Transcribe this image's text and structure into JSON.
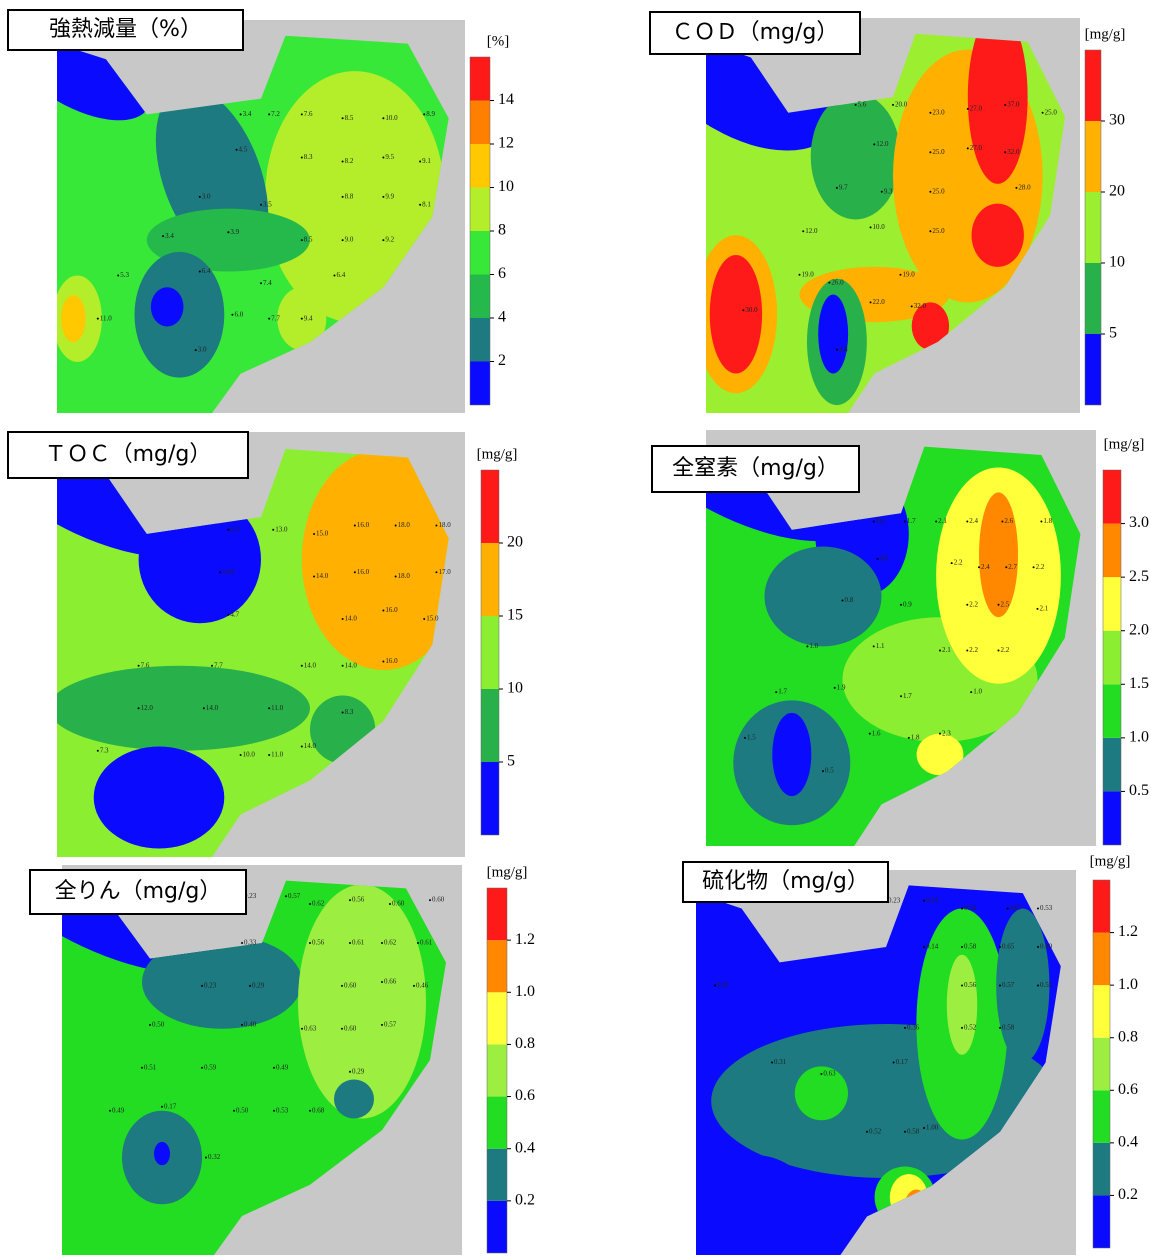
{
  "panels": [
    {
      "title": "強熱減量（%）",
      "unit": "[%]",
      "ticks": [
        2,
        4,
        6,
        8,
        10,
        12,
        14
      ],
      "colors": [
        "#0a0aff",
        "#1c7a80",
        "#25b84a",
        "#38e838",
        "#b4ee2a",
        "#ffc800",
        "#ff8000",
        "#ff1a1a"
      ],
      "points": [
        "3.4",
        "7.2",
        "7.6",
        "8.5",
        "10.0",
        "8.9",
        "4.5",
        "8.3",
        "8.2",
        "9.5",
        "9.1",
        "3.0",
        "3.5",
        "8.8",
        "9.9",
        "8.1",
        "3.4",
        "3.9",
        "8.5",
        "9.0",
        "9.2",
        "5.3",
        "6.4",
        "7.4",
        "6.4",
        "11.0",
        "6.0",
        "7.7",
        "9.4",
        "3.0"
      ]
    },
    {
      "title": "ＣＯＤ（mg/g）",
      "unit": "[mg/g]",
      "ticks": [
        5,
        10,
        20,
        30
      ],
      "colors": [
        "#0a0aff",
        "#28b04a",
        "#9cee30",
        "#ffb000",
        "#ff1a1a"
      ],
      "points": [
        "5.6",
        "20.0",
        "23.0",
        "27.0",
        "37.0",
        "25.0",
        "12.0",
        "25.0",
        "27.0",
        "32.0",
        "9.7",
        "9.3",
        "25.0",
        "28.0",
        "12.0",
        "10.0",
        "25.0",
        "19.0",
        "26.0",
        "19.0",
        "30.0",
        "22.0",
        "32.0",
        "4.8"
      ]
    },
    {
      "title": "ＴＯＣ（mg/g）",
      "unit": "[mg/g]",
      "ticks": [
        5,
        10,
        15,
        20
      ],
      "colors": [
        "#0a0aff",
        "#28b04a",
        "#8cee30",
        "#ffb000",
        "#ff1a1a"
      ],
      "points": [
        "6.3",
        "13.0",
        "15.0",
        "16.0",
        "18.0",
        "18.0",
        "14.9",
        "14.0",
        "16.0",
        "18.0",
        "17.0",
        "4.7",
        "14.0",
        "16.0",
        "15.0",
        "7.6",
        "7.7",
        "14.0",
        "14.0",
        "16.0",
        "12.0",
        "14.0",
        "11.0",
        "8.3",
        "7.3",
        "10.0",
        "11.0",
        "14.0"
      ]
    },
    {
      "title": "全窒素（mg/g）",
      "unit": "[mg/g]",
      "ticks": [
        {
          "value": 0.5,
          "label": "0.5"
        },
        {
          "value": 1,
          "label": "1.0"
        },
        {
          "value": 1.5,
          "label": "1.5"
        },
        {
          "value": 2,
          "label": "2.0"
        },
        {
          "value": 2.5,
          "label": "2.5"
        },
        {
          "value": 3,
          "label": "3.0"
        }
      ],
      "colors": [
        "#0a0aff",
        "#1c7a80",
        "#22dd22",
        "#8cee30",
        "#ffff3a",
        "#ff8800",
        "#ff1a1a"
      ],
      "points": [
        "0.6",
        "1.7",
        "2.1",
        "2.4",
        "2.6",
        "1.8",
        "0.9",
        "2.2",
        "2.4",
        "2.7",
        "2.2",
        "0.8",
        "0.9",
        "2.2",
        "2.5",
        "2.1",
        "1.0",
        "1.1",
        "2.1",
        "2.2",
        "2.2",
        "1.7",
        "1.9",
        "1.7",
        "1.0",
        "1.5",
        "1.6",
        "1.8",
        "2.3",
        "0.5"
      ]
    },
    {
      "title": "全りん（mg/g）",
      "unit": "[mg/g]",
      "ticks": [
        0.2,
        0.4,
        0.6,
        0.8,
        {
          "value": 1,
          "label": "1.0"
        },
        1.2
      ],
      "colors": [
        "#0a0aff",
        "#1c7a80",
        "#22dd22",
        "#9cee40",
        "#ffff3a",
        "#ff8800",
        "#ff1a1a"
      ],
      "points": [
        "0.23",
        "0.57",
        "0.62",
        "0.56",
        "0.60",
        "0.60",
        "0.33",
        "0.56",
        "0.61",
        "0.62",
        "0.61",
        "0.23",
        "0.29",
        "0.60",
        "0.66",
        "0.46",
        "0.50",
        "0.40",
        "0.63",
        "0.60",
        "0.57",
        "0.51",
        "0.59",
        "0.49",
        "0.29",
        "0.49",
        "0.17",
        "0.50",
        "0.53",
        "0.68",
        "0.32"
      ]
    },
    {
      "title": "硫化物（mg/g）",
      "unit": "[mg/g]",
      "ticks": [
        0.2,
        0.4,
        0.6,
        0.8,
        {
          "value": 1,
          "label": "1.0"
        },
        1.2
      ],
      "colors": [
        "#0a0aff",
        "#1c7a80",
        "#22dd22",
        "#9cee40",
        "#ffff3a",
        "#ff8800",
        "#ff1a1a"
      ],
      "points": [
        "0.23",
        "0.29",
        "0.53",
        "0.67",
        "0.53",
        "0.14",
        "0.58",
        "0.65",
        "0.40",
        "0.01",
        "0.56",
        "0.57",
        "0.55",
        "0.36",
        "0.52",
        "0.58",
        "0.31",
        "0.63",
        "0.17",
        "0.52",
        "0.58",
        "1.00"
      ]
    }
  ]
}
